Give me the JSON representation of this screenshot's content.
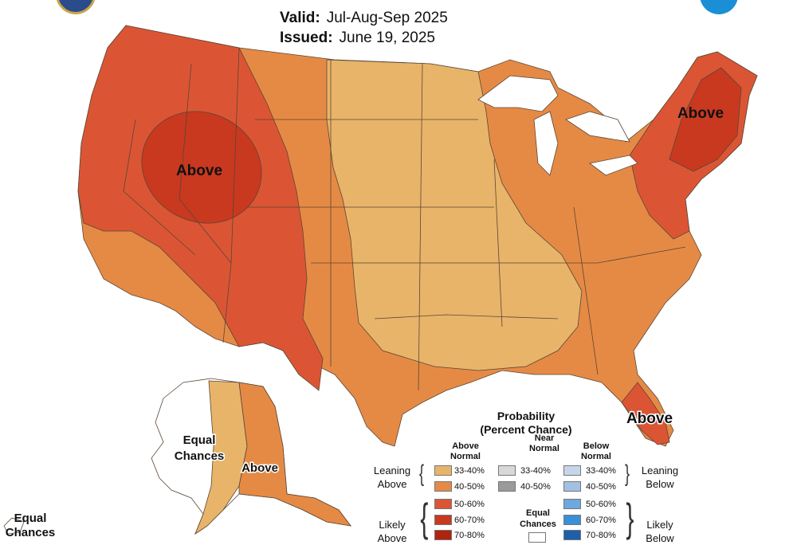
{
  "header": {
    "valid_label": "Valid:",
    "valid_value": "Jul-Aug-Sep 2025",
    "issued_label": "Issued:",
    "issued_value": "June 19, 2025"
  },
  "map": {
    "labels": {
      "great_basin": "Above",
      "northeast": "Above",
      "florida": "Above",
      "alaska_west": "Equal",
      "alaska_west_2": "Chances",
      "alaska_east": "Above",
      "hawaii": "Equal",
      "hawaii_2": "Chances"
    }
  },
  "legend": {
    "title_line1": "Probability",
    "title_line2": "(Percent Chance)",
    "col_above_line1": "Above",
    "col_above_line2": "Normal",
    "col_near_line1": "Near",
    "col_near_line2": "Normal",
    "col_below_line1": "Below",
    "col_below_line2": "Normal",
    "leaning_above_1": "Leaning",
    "leaning_above_2": "Above",
    "leaning_below_1": "Leaning",
    "leaning_below_2": "Below",
    "likely_above_1": "Likely",
    "likely_above_2": "Above",
    "likely_below_1": "Likely",
    "likely_below_2": "Below",
    "equal_chances_1": "Equal",
    "equal_chances_2": "Chances",
    "above": [
      {
        "label": "33-40%",
        "color": "#e8b46a"
      },
      {
        "label": "40-50%",
        "color": "#e58a45"
      },
      {
        "label": "50-60%",
        "color": "#db5535"
      },
      {
        "label": "60-70%",
        "color": "#c8391f"
      },
      {
        "label": "70-80%",
        "color": "#b0230d"
      }
    ],
    "near": [
      {
        "label": "33-40%",
        "color": "#d8d8d8"
      },
      {
        "label": "40-50%",
        "color": "#9a9a9a"
      }
    ],
    "below": [
      {
        "label": "33-40%",
        "color": "#c6d6ea"
      },
      {
        "label": "40-50%",
        "color": "#a2c0e2"
      },
      {
        "label": "50-60%",
        "color": "#6ea8de"
      },
      {
        "label": "60-70%",
        "color": "#3a8fd8"
      },
      {
        "label": "70-80%",
        "color": "#1d5fa8"
      }
    ]
  },
  "colors": {
    "lean_above": "#e8b46a",
    "above_40_50": "#e58a45",
    "above_50_60": "#db5535",
    "above_60_70": "#c8391f",
    "state_lines": "#5a4634"
  }
}
